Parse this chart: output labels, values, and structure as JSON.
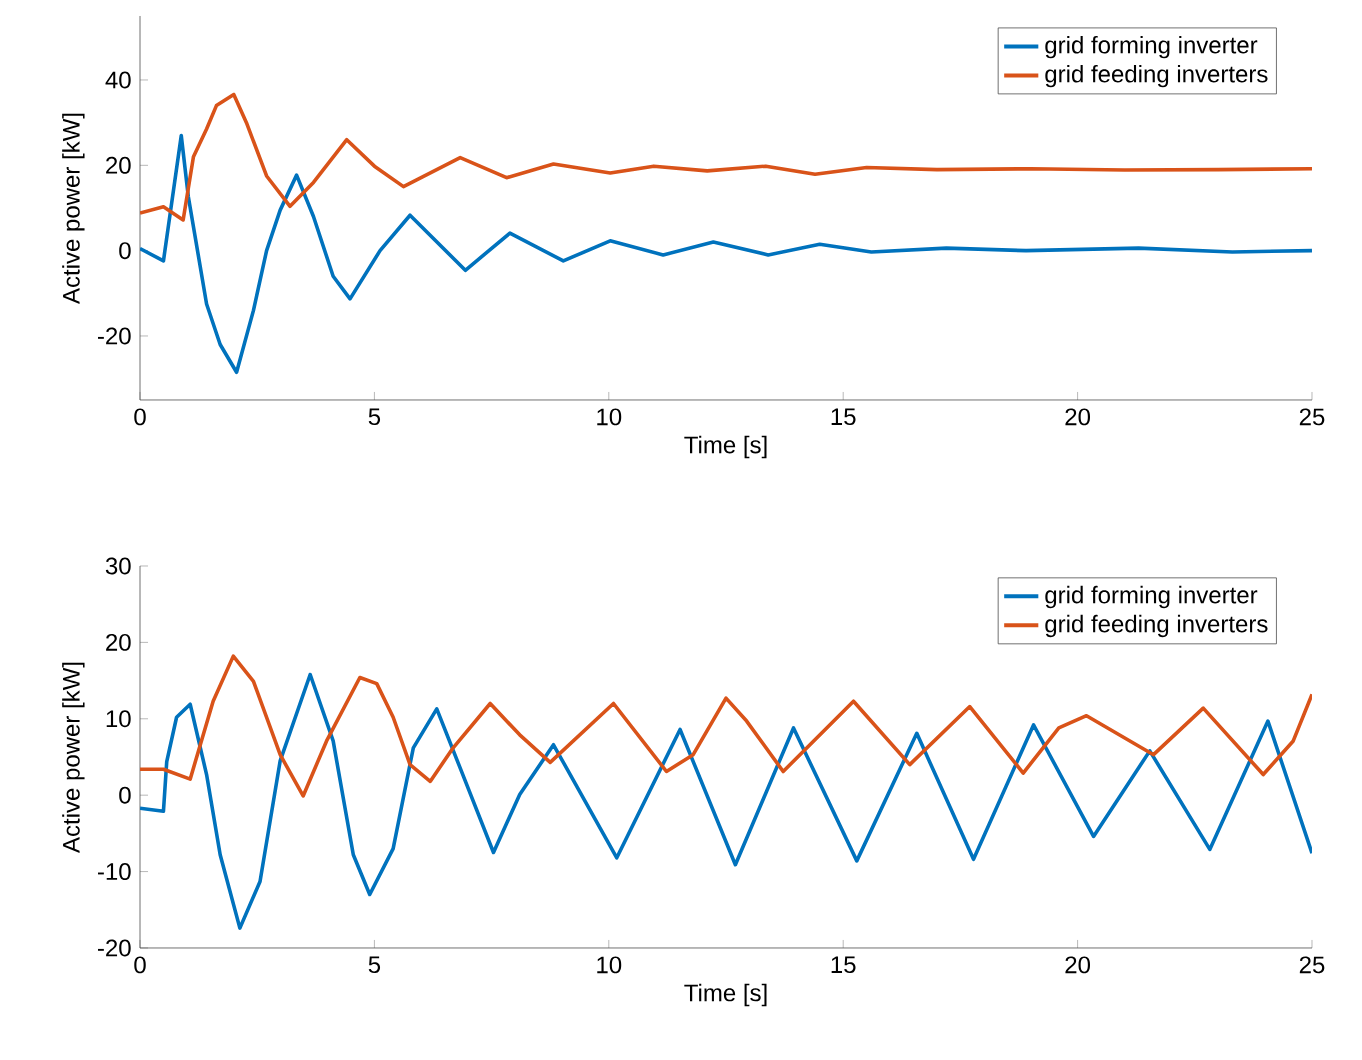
{
  "chart_data": [
    {
      "type": "line",
      "xlabel": "Time [s]",
      "ylabel": "Active power [kW]",
      "xlim": [
        0,
        25
      ],
      "ylim": [
        -35,
        55
      ],
      "xticks": [
        0,
        5,
        10,
        15,
        20,
        25
      ],
      "yticks": [
        -20,
        0,
        20,
        40
      ],
      "legend": "top right",
      "grid": false,
      "line_style": "solid",
      "series": [
        {
          "name": "grid forming inverter",
          "color": "#0072bd",
          "x": [
            0,
            0.5,
            0.88,
            1.03,
            1.42,
            1.71,
            2.06,
            2.42,
            2.7,
            2.99,
            3.34,
            3.7,
            4.12,
            4.48,
            5.12,
            5.76,
            6.94,
            7.89,
            9.03,
            10.03,
            11.16,
            12.23,
            13.4,
            14.5,
            15.6,
            17.2,
            18.9,
            21.3,
            23.3,
            25
          ],
          "values": [
            0.5,
            -2.4,
            27,
            12.7,
            -12.5,
            -22,
            -28.5,
            -14,
            0,
            9.5,
            17.7,
            8,
            -6,
            -11.3,
            0,
            8.3,
            -4.6,
            4.1,
            -2.4,
            2.3,
            -1,
            2,
            -1,
            1.5,
            -0.3,
            0.6,
            0,
            0.6,
            -0.3,
            0
          ]
        },
        {
          "name": "grid feeding inverters",
          "color": "#d95319",
          "x": [
            0,
            0.5,
            0.92,
            1.14,
            1.42,
            1.63,
            2.0,
            2.27,
            2.7,
            3.2,
            3.7,
            4.41,
            5.0,
            5.62,
            6.83,
            7.82,
            8.82,
            10.03,
            10.96,
            12.1,
            13.35,
            14.4,
            15.5,
            17,
            19,
            21,
            23,
            25
          ],
          "values": [
            8.8,
            10.3,
            7.2,
            22,
            28.5,
            34,
            36.6,
            30,
            17.5,
            10.4,
            16,
            26,
            19.8,
            15,
            21.8,
            17.1,
            20.3,
            18.2,
            19.8,
            18.7,
            19.8,
            17.9,
            19.5,
            19,
            19.2,
            18.9,
            19,
            19.2
          ]
        }
      ]
    },
    {
      "type": "line",
      "xlabel": "Time [s]",
      "ylabel": "Active power [kW]",
      "xlim": [
        0,
        25
      ],
      "ylim": [
        -20,
        30
      ],
      "xticks": [
        0,
        5,
        10,
        15,
        20,
        25
      ],
      "yticks": [
        -20,
        -10,
        0,
        10,
        20,
        30
      ],
      "legend": "top right",
      "grid": false,
      "line_style": "solid",
      "series": [
        {
          "name": "grid forming inverter",
          "color": "#0072bd",
          "x": [
            0,
            0.5,
            0.57,
            0.78,
            1.07,
            1.42,
            1.71,
            2.13,
            2.56,
            2.99,
            3.63,
            4.12,
            4.55,
            4.9,
            5.4,
            5.83,
            6.33,
            6.82,
            7.54,
            8.1,
            8.82,
            10.17,
            11.52,
            12.7,
            13.94,
            15.29,
            16.57,
            17.78,
            19.06,
            20.34,
            21.54,
            22.82,
            24.06,
            25
          ],
          "values": [
            -1.7,
            -2.1,
            4.4,
            10.2,
            11.9,
            2.7,
            -7.8,
            -17.4,
            -11.3,
            4.5,
            15.8,
            7.1,
            -7.8,
            -13,
            -7,
            6.2,
            11.3,
            3.7,
            -7.5,
            0.1,
            6.6,
            -8.2,
            8.6,
            -9.1,
            8.8,
            -8.6,
            8.1,
            -8.4,
            9.2,
            -5.4,
            5.8,
            -7.1,
            9.7,
            -7.6
          ]
        },
        {
          "name": "grid feeding inverters",
          "color": "#d95319",
          "x": [
            0,
            0.5,
            1.07,
            1.56,
            1.99,
            2.42,
            2.99,
            3.48,
            3.98,
            4.69,
            5.05,
            5.4,
            5.76,
            6.19,
            6.68,
            7.47,
            8.1,
            8.75,
            10.1,
            11.23,
            11.8,
            12.5,
            12.94,
            13.72,
            15.22,
            16.42,
            17.7,
            18.84,
            19.6,
            20.19,
            21.62,
            22.68,
            23.96,
            24.6,
            25
          ],
          "values": [
            3.4,
            3.4,
            2.1,
            12.3,
            18.2,
            14.9,
            5.3,
            -0.1,
            7.1,
            15.4,
            14.6,
            10.2,
            4,
            1.8,
            6.2,
            12,
            7.9,
            4.3,
            12,
            3.1,
            5.3,
            12.7,
            9.7,
            3.1,
            12.3,
            4,
            11.6,
            2.9,
            8.8,
            10.4,
            5.3,
            11.4,
            2.7,
            7.1,
            13.2
          ]
        }
      ]
    }
  ]
}
